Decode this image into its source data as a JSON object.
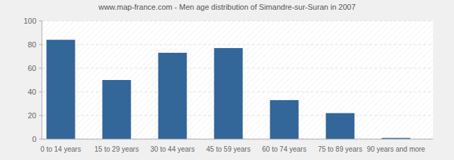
{
  "chart_data": {
    "type": "bar",
    "title": "www.map-france.com - Men age distribution of Simandre-sur-Suran in 2007",
    "categories": [
      "0 to 14 years",
      "15 to 29 years",
      "30 to 44 years",
      "45 to 59 years",
      "60 to 74 years",
      "75 to 89 years",
      "90 years and more"
    ],
    "values": [
      84,
      50,
      73,
      77,
      33,
      22,
      1
    ],
    "color": "#336699",
    "ylim": [
      0,
      100
    ],
    "yticks": [
      0,
      20,
      40,
      60,
      80,
      100
    ],
    "grid": true
  }
}
